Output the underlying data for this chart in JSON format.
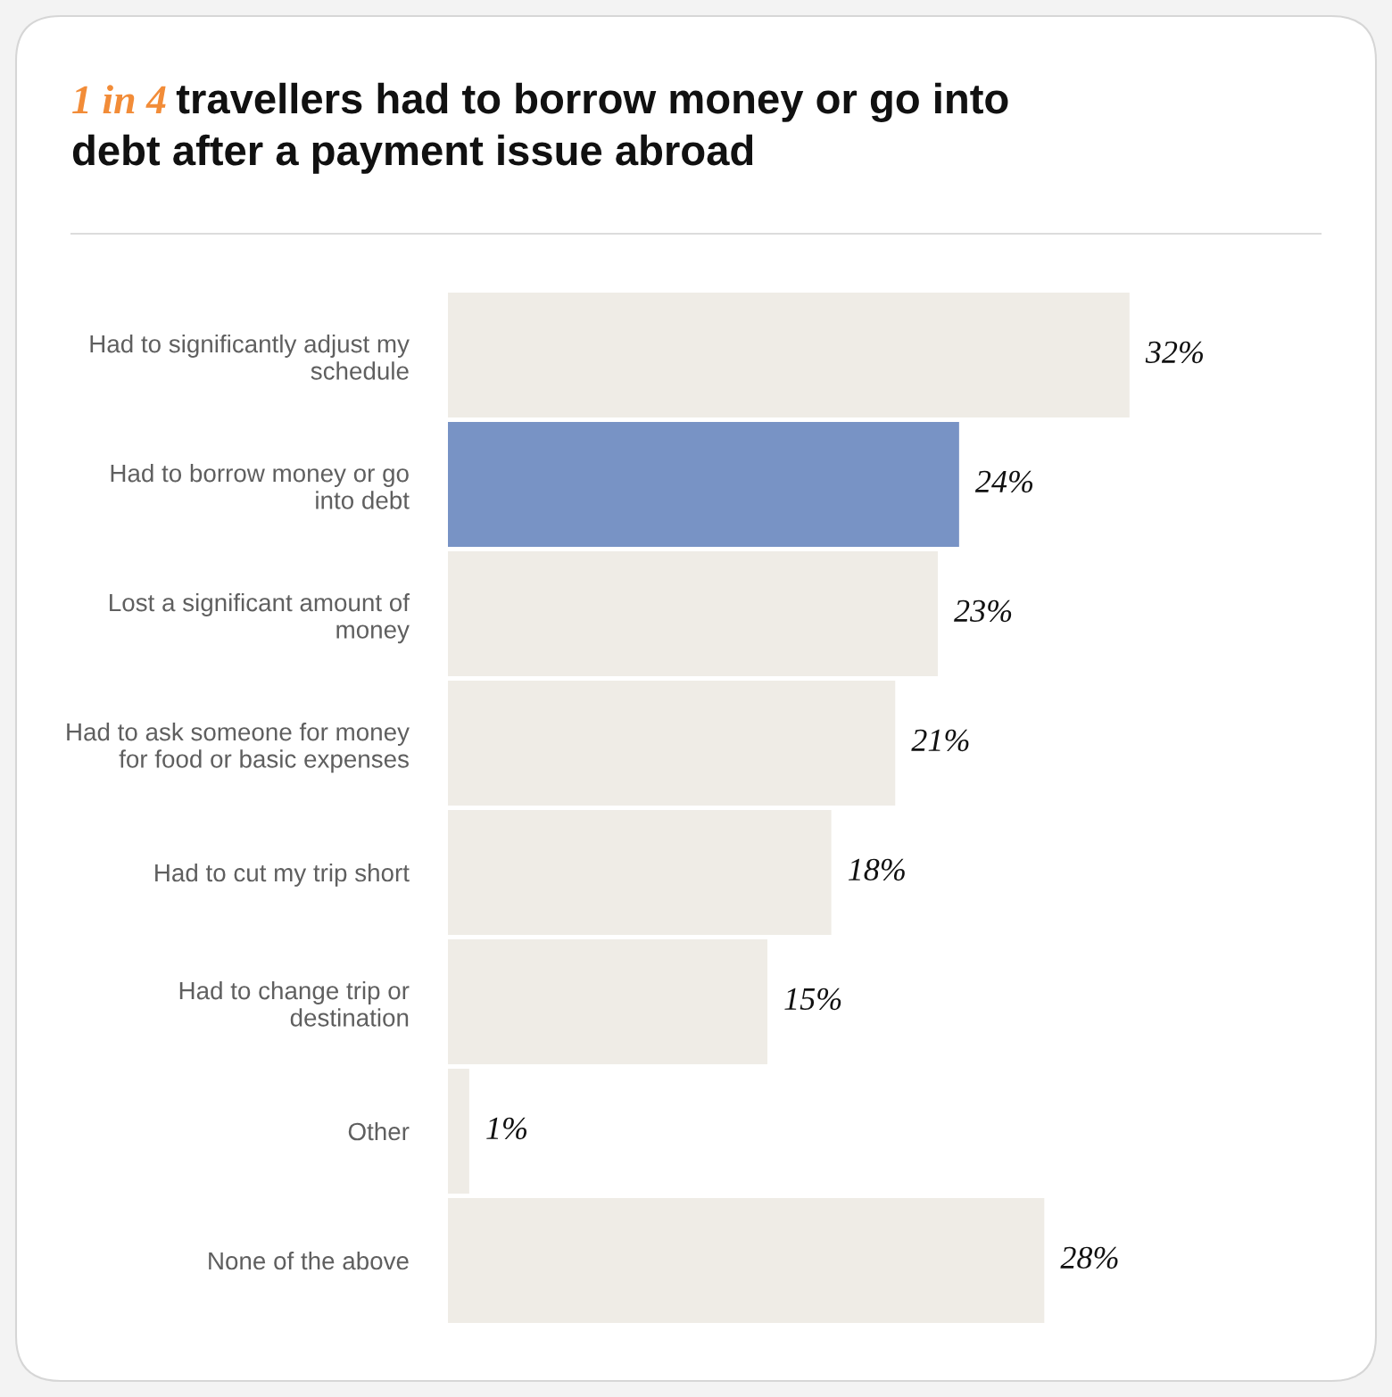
{
  "chart_data": {
    "type": "bar",
    "orientation": "horizontal",
    "title": "1 in 4 travellers had to borrow money or go into\ndebt after a payment issue abroad",
    "categories": [
      "Had to significantly adjust my\nschedule",
      "Had to borrow money or go\ninto debt",
      "Lost a significant amount of\nmoney",
      "Had to ask someone for money\nfor food or basic expenses",
      "Had to cut my trip short",
      "Had to change trip or\ndestination",
      "Other",
      "None of the above"
    ],
    "values": [
      32,
      24,
      23,
      21,
      18,
      15,
      1,
      28
    ],
    "colors": [
      "#efece6",
      "#7893c5",
      "#efece6",
      "#efece6",
      "#efece6",
      "#efece6",
      "#efece6",
      "#efece6"
    ],
    "value_labels": [
      "32%",
      "24%",
      "23%",
      "21%",
      "18%",
      "15%",
      "1%",
      "28%"
    ],
    "tick_labels": "y"
  }
}
